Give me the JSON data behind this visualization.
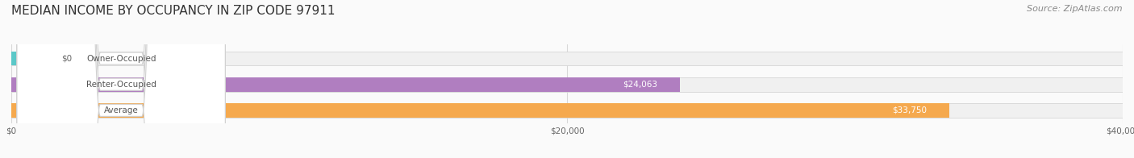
{
  "title": "MEDIAN INCOME BY OCCUPANCY IN ZIP CODE 97911",
  "source": "Source: ZipAtlas.com",
  "categories": [
    "Owner-Occupied",
    "Renter-Occupied",
    "Average"
  ],
  "values": [
    0,
    24063,
    33750
  ],
  "value_labels": [
    "$0",
    "$24,063",
    "$33,750"
  ],
  "bar_colors": [
    "#5bc8c8",
    "#b07ec0",
    "#f5a94e"
  ],
  "bar_bg_color": "#f0f0f0",
  "bar_border_color": "#cccccc",
  "label_bg_color": "#ffffff",
  "xlim": [
    0,
    40000
  ],
  "xtick_values": [
    0,
    20000,
    40000
  ],
  "xtick_labels": [
    "$0",
    "$20,000",
    "$40,000"
  ],
  "title_fontsize": 11,
  "source_fontsize": 8,
  "bar_height": 0.55,
  "figsize": [
    14.06,
    1.96
  ],
  "dpi": 100
}
